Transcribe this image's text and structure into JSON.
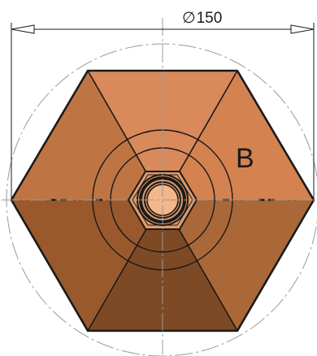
{
  "dimension": {
    "symbol": "∅",
    "value": "150"
  },
  "face_label": "B",
  "colors": {
    "line": "#1a1a1a",
    "centerline": "#9a9a9a",
    "face_top": "#d9895a",
    "face_upper_right": "#d38250",
    "face_upper_left": "#bf7543",
    "face_lower_right": "#aa6838",
    "face_lower_left": "#99592d",
    "face_bottom": "#7e4a25",
    "bore": "#f3b78b",
    "nut": "#e09a6a"
  }
}
